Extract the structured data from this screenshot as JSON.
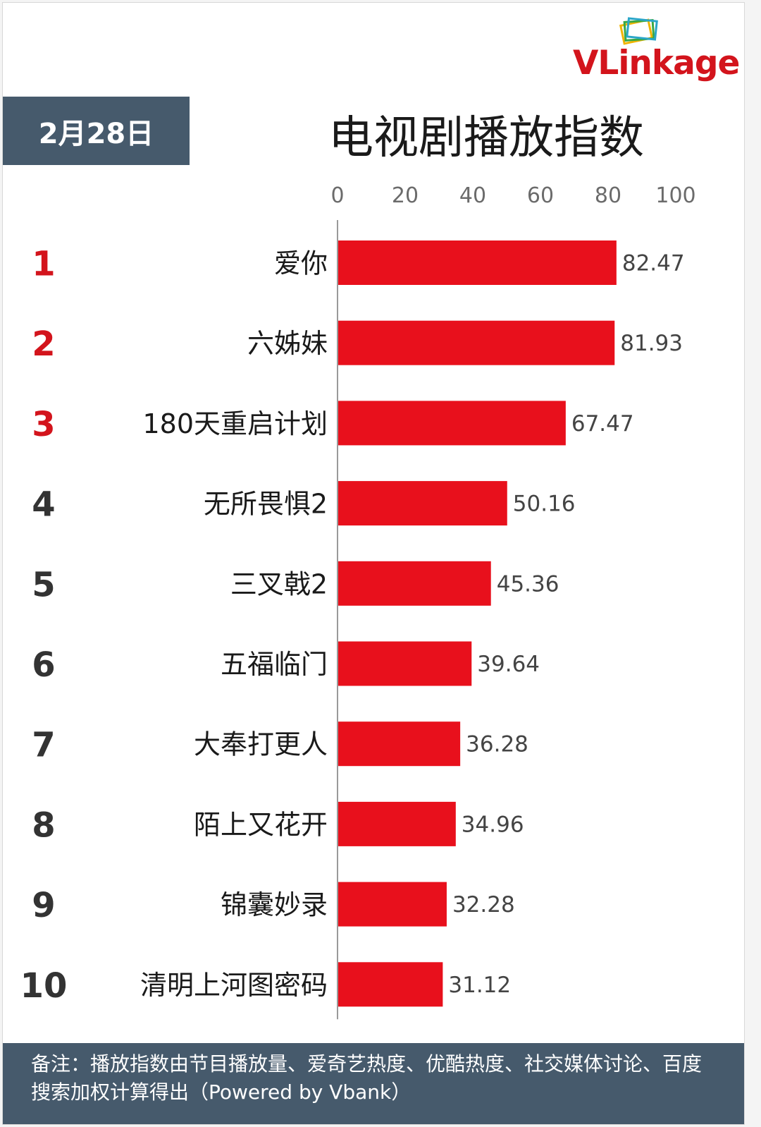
{
  "header": {
    "date_label": "2月28日",
    "title": "电视剧播放指数",
    "logo": {
      "part1": "VLink",
      "part2": "age"
    }
  },
  "footer": {
    "note": "备注：播放指数由节目播放量、爱奇艺热度、优酷热度、社交媒体讨论、百度搜索加权计算得出（Powered by Vbank）"
  },
  "colors": {
    "bar": "#e8101c",
    "rank_top": "#d3141c",
    "rank_other": "#333333",
    "header_bg": "#465a6c"
  },
  "chart_data": {
    "type": "bar",
    "orientation": "horizontal",
    "title": "电视剧播放指数",
    "xlim": [
      0,
      100
    ],
    "x_ticks": [
      0,
      20,
      40,
      60,
      80,
      100
    ],
    "x_tick_position": "top",
    "grid": false,
    "ranks": [
      "1",
      "2",
      "3",
      "4",
      "5",
      "6",
      "7",
      "8",
      "9",
      "10"
    ],
    "categories": [
      "爱你",
      "六姊妹",
      "180天重启计划",
      "无所畏惧2",
      "三叉戟2",
      "五福临门",
      "大奉打更人",
      "陌上又花开",
      "锦囊妙录",
      "清明上河图密码"
    ],
    "values": [
      82.47,
      81.93,
      67.47,
      50.16,
      45.36,
      39.64,
      36.28,
      34.96,
      32.28,
      31.12
    ],
    "value_labels": [
      "82.47",
      "81.93",
      "67.47",
      "50.16",
      "45.36",
      "39.64",
      "36.28",
      "34.96",
      "32.28",
      "31.12"
    ]
  }
}
